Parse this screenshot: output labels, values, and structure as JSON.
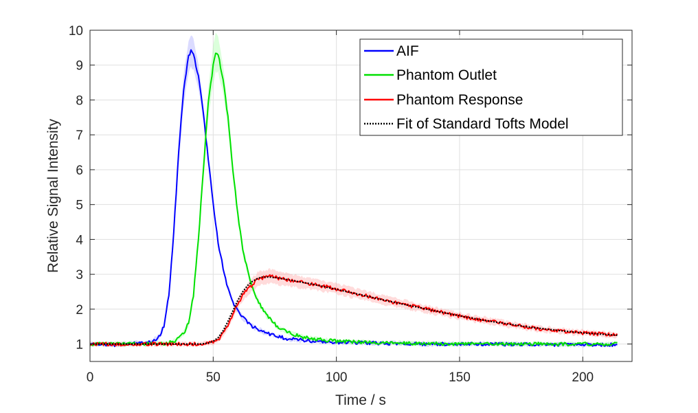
{
  "chart_data": {
    "type": "line",
    "xlabel": "Time / s",
    "ylabel": "Relative Signal Intensity",
    "xlim": [
      0,
      220
    ],
    "ylim": [
      0.5,
      10
    ],
    "xticks": [
      0,
      50,
      100,
      150,
      200
    ],
    "yticks": [
      1,
      2,
      3,
      4,
      5,
      6,
      7,
      8,
      9,
      10
    ],
    "grid": true,
    "legend_position": "top-right",
    "series": [
      {
        "name": "AIF",
        "color": "#0000ff",
        "band_color": "#9999ff",
        "x": [
          0,
          10,
          20,
          25,
          28,
          30,
          32,
          34,
          36,
          38,
          40,
          41,
          42,
          44,
          46,
          48,
          50,
          52,
          55,
          58,
          62,
          66,
          70,
          75,
          80,
          90,
          100,
          120,
          140,
          160,
          180,
          200,
          214
        ],
        "y": [
          1.0,
          0.98,
          1.02,
          1.05,
          1.2,
          1.5,
          2.4,
          4.2,
          6.5,
          8.3,
          9.25,
          9.4,
          9.3,
          8.7,
          7.6,
          6.3,
          5.0,
          3.9,
          2.85,
          2.2,
          1.75,
          1.5,
          1.35,
          1.25,
          1.15,
          1.08,
          1.05,
          1.02,
          1.0,
          1.0,
          0.99,
          0.98,
          0.98
        ],
        "band": [
          0.05,
          0.05,
          0.05,
          0.06,
          0.08,
          0.1,
          0.15,
          0.25,
          0.35,
          0.45,
          0.45,
          0.45,
          0.45,
          0.35,
          0.25,
          0.2,
          0.15,
          0.12,
          0.1,
          0.08,
          0.07,
          0.06,
          0.06,
          0.05,
          0.05,
          0.05,
          0.05,
          0.05,
          0.05,
          0.05,
          0.05,
          0.05,
          0.05
        ]
      },
      {
        "name": "Phantom Outlet",
        "color": "#00e000",
        "band_color": "#99ff99",
        "x": [
          0,
          20,
          30,
          35,
          38,
          40,
          42,
          44,
          46,
          48,
          50,
          51,
          52,
          54,
          56,
          58,
          60,
          62,
          65,
          68,
          72,
          76,
          80,
          85,
          90,
          100,
          120,
          150,
          180,
          200,
          214
        ],
        "y": [
          1.0,
          1.0,
          1.02,
          1.1,
          1.3,
          1.6,
          2.4,
          4.0,
          6.0,
          7.9,
          9.0,
          9.35,
          9.3,
          8.6,
          7.5,
          6.0,
          4.7,
          3.7,
          2.8,
          2.25,
          1.8,
          1.5,
          1.35,
          1.22,
          1.15,
          1.08,
          1.03,
          1.0,
          1.0,
          1.0,
          1.0
        ],
        "band": [
          0.05,
          0.05,
          0.05,
          0.06,
          0.08,
          0.1,
          0.15,
          0.25,
          0.35,
          0.45,
          0.55,
          0.55,
          0.5,
          0.4,
          0.3,
          0.25,
          0.2,
          0.15,
          0.12,
          0.1,
          0.08,
          0.07,
          0.06,
          0.06,
          0.05,
          0.05,
          0.05,
          0.05,
          0.05,
          0.05,
          0.05
        ]
      },
      {
        "name": "Phantom Response",
        "color": "#ff0000",
        "band_color": "#ff9999",
        "x": [
          0,
          20,
          40,
          45,
          48,
          50,
          52,
          54,
          56,
          58,
          60,
          62,
          65,
          68,
          70,
          73,
          76,
          80,
          90,
          100,
          110,
          120,
          130,
          140,
          150,
          160,
          170,
          180,
          190,
          200,
          214
        ],
        "y": [
          1.0,
          1.0,
          1.0,
          1.0,
          1.02,
          1.05,
          1.12,
          1.3,
          1.55,
          1.85,
          2.15,
          2.4,
          2.65,
          2.85,
          2.9,
          2.95,
          2.9,
          2.85,
          2.72,
          2.58,
          2.42,
          2.25,
          2.1,
          1.95,
          1.8,
          1.68,
          1.56,
          1.46,
          1.38,
          1.32,
          1.26
        ],
        "band": [
          0.05,
          0.05,
          0.05,
          0.05,
          0.05,
          0.06,
          0.07,
          0.08,
          0.1,
          0.12,
          0.14,
          0.16,
          0.18,
          0.2,
          0.2,
          0.2,
          0.2,
          0.18,
          0.16,
          0.15,
          0.14,
          0.13,
          0.12,
          0.11,
          0.1,
          0.1,
          0.09,
          0.09,
          0.08,
          0.08,
          0.08
        ]
      },
      {
        "name": "Fit of Standard Tofts Model",
        "color": "#000000",
        "style": "dotted",
        "x": [
          0,
          20,
          40,
          45,
          48,
          50,
          52,
          54,
          56,
          58,
          60,
          62,
          64,
          66,
          68,
          70,
          73,
          76,
          80,
          90,
          100,
          110,
          120,
          130,
          140,
          150,
          160,
          170,
          180,
          190,
          200,
          214
        ],
        "y": [
          1.0,
          1.0,
          1.0,
          1.0,
          1.03,
          1.08,
          1.18,
          1.38,
          1.65,
          1.95,
          2.25,
          2.5,
          2.68,
          2.8,
          2.88,
          2.92,
          2.92,
          2.9,
          2.85,
          2.72,
          2.57,
          2.41,
          2.25,
          2.1,
          1.95,
          1.81,
          1.68,
          1.57,
          1.47,
          1.39,
          1.32,
          1.25
        ]
      }
    ]
  }
}
